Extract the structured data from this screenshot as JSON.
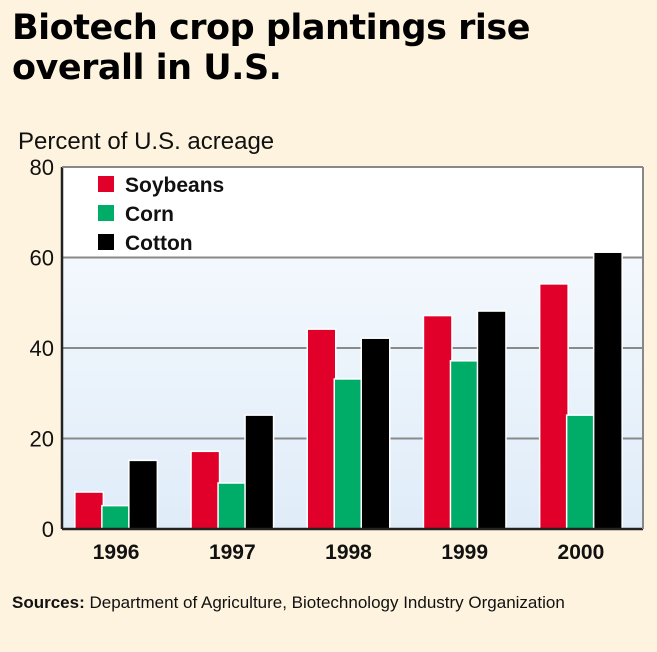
{
  "chart_data": {
    "type": "bar",
    "title": "Biotech crop plantings rise overall in U.S.",
    "ylabel": "Percent of U.S. acreage",
    "xlabel": "",
    "categories": [
      "1996",
      "1997",
      "1998",
      "1999",
      "2000"
    ],
    "series": [
      {
        "name": "Soybeans",
        "color": "#e1002a",
        "values": [
          8,
          17,
          44,
          47,
          54
        ]
      },
      {
        "name": "Corn",
        "color": "#00ad68",
        "values": [
          5,
          10,
          33,
          37,
          25
        ]
      },
      {
        "name": "Cotton",
        "color": "#000000",
        "values": [
          15,
          25,
          42,
          48,
          61
        ]
      }
    ],
    "ylim": [
      0,
      80
    ],
    "yticks": [
      0,
      20,
      40,
      60,
      80
    ],
    "grid": true,
    "legend_position": "top-left",
    "source_label": "Sources:",
    "source_text": " Department of Agriculture, Biotechnology Industry Organization"
  },
  "colors": {
    "background": "#fdf3de",
    "plot_top": "#ffffff",
    "plot_bottom": "#e2eef9",
    "gridline": "#8a8a8a"
  }
}
